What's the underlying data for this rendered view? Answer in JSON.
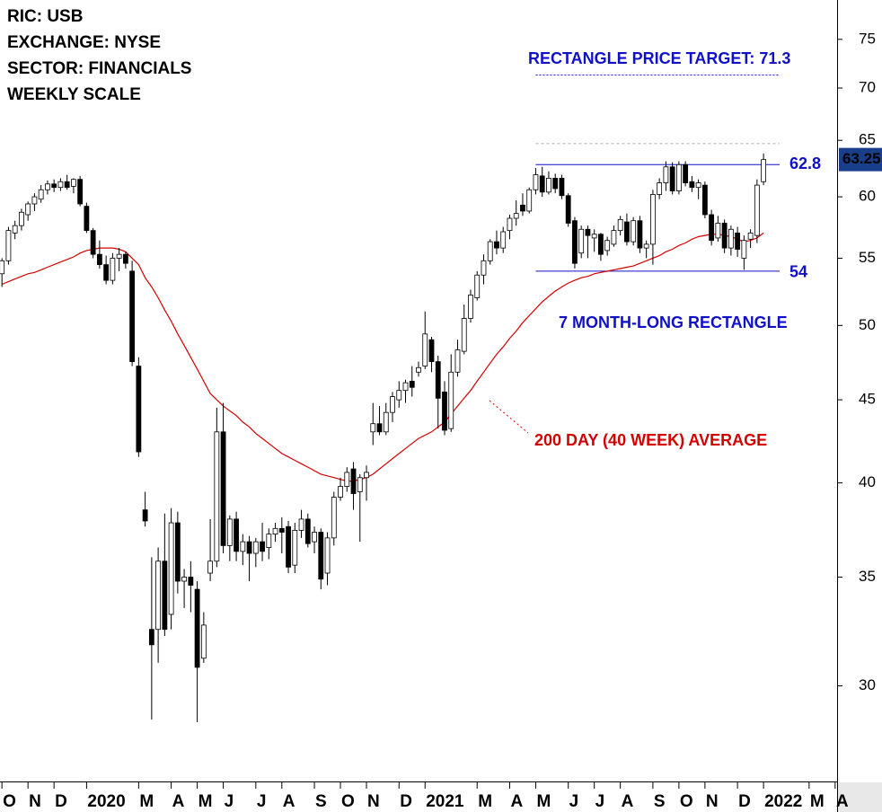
{
  "chart_data": {
    "type": "candlestick",
    "header_lines": [
      "RIC: USB",
      "EXCHANGE: NYSE",
      "SECTOR: FINANCIALS",
      "WEEKLY SCALE"
    ],
    "log_scale": true,
    "ylim": [
      26.2,
      79.3
    ],
    "yticks": [
      30,
      35,
      40,
      45,
      50,
      55,
      60,
      65,
      70,
      75
    ],
    "xlim": [
      -0.3,
      128.3
    ],
    "xticks": [
      {
        "value": 0,
        "label": "O"
      },
      {
        "value": 4,
        "label": "N"
      },
      {
        "value": 8,
        "label": "D"
      },
      {
        "value": 13,
        "label": "2020"
      },
      {
        "value": 21,
        "label": "M"
      },
      {
        "value": 26,
        "label": "A"
      },
      {
        "value": 30,
        "label": "M"
      },
      {
        "value": 34,
        "label": "J"
      },
      {
        "value": 39,
        "label": "J"
      },
      {
        "value": 43,
        "label": "A"
      },
      {
        "value": 48,
        "label": "S"
      },
      {
        "value": 52,
        "label": "O"
      },
      {
        "value": 56,
        "label": "N"
      },
      {
        "value": 61,
        "label": "D"
      },
      {
        "value": 65,
        "label": "2021"
      },
      {
        "value": 73,
        "label": "M"
      },
      {
        "value": 78,
        "label": "A"
      },
      {
        "value": 82,
        "label": "M"
      },
      {
        "value": 87,
        "label": "J"
      },
      {
        "value": 91,
        "label": "J"
      },
      {
        "value": 95,
        "label": "A"
      },
      {
        "value": 100,
        "label": "S"
      },
      {
        "value": 104,
        "label": "O"
      },
      {
        "value": 108,
        "label": "N"
      },
      {
        "value": 113,
        "label": "D"
      },
      {
        "value": 117,
        "label": "2022"
      },
      {
        "value": 124,
        "label": "M"
      },
      {
        "value": 128,
        "label": "A"
      }
    ],
    "ohlc": [
      [
        53.8,
        55,
        52.8,
        54.8
      ],
      [
        54.8,
        57.5,
        54.5,
        57.2
      ],
      [
        57,
        58,
        56.5,
        57.6
      ],
      [
        57.6,
        59,
        57.2,
        58.7
      ],
      [
        58.5,
        59.6,
        58,
        59.4
      ],
      [
        59.4,
        60.3,
        58.8,
        60
      ],
      [
        59.8,
        61,
        59.5,
        60.6
      ],
      [
        60.6,
        61.4,
        60.2,
        61.1
      ],
      [
        61.1,
        61.5,
        60.4,
        60.8
      ],
      [
        60.8,
        61.6,
        60.5,
        61.3
      ],
      [
        61.3,
        61.9,
        60.6,
        60.8
      ],
      [
        60.9,
        61.6,
        60.3,
        61.5
      ],
      [
        61.5,
        61.8,
        59.2,
        59.4
      ],
      [
        59.2,
        59.5,
        57,
        57.2
      ],
      [
        57.2,
        57.4,
        55,
        55.3
      ],
      [
        55.3,
        56.4,
        54.2,
        54.5
      ],
      [
        54.5,
        55.2,
        53,
        53.3
      ],
      [
        53.3,
        55.4,
        53,
        55
      ],
      [
        55,
        55.8,
        54,
        55.3
      ],
      [
        55.3,
        55.5,
        54.2,
        54.6
      ],
      [
        54,
        54.8,
        47.2,
        47.5
      ],
      [
        47.2,
        47.8,
        41.5,
        41.8
      ],
      [
        38.5,
        39.5,
        37.6,
        37.9
      ],
      [
        32.5,
        36,
        28.6,
        31.8
      ],
      [
        32.5,
        36.5,
        31,
        35.8
      ],
      [
        35.8,
        38.3,
        32.2,
        32.5
      ],
      [
        33.2,
        38.6,
        32.5,
        37.8
      ],
      [
        37.8,
        38.4,
        34.2,
        34.8
      ],
      [
        34.8,
        35.4,
        33.5,
        35
      ],
      [
        35,
        35.8,
        33.3,
        34.6
      ],
      [
        34.4,
        34.8,
        28.5,
        30.8
      ],
      [
        31.2,
        33.3,
        31,
        32.7
      ],
      [
        35.2,
        38,
        34.8,
        35.8
      ],
      [
        35.8,
        44.5,
        35.5,
        43
      ],
      [
        43,
        44.8,
        36.2,
        36.6
      ],
      [
        36.6,
        38.2,
        35.8,
        38
      ],
      [
        38,
        38.4,
        35.8,
        36.3
      ],
      [
        36.3,
        37.2,
        35.6,
        36.8
      ],
      [
        36.8,
        37.1,
        34.8,
        36.2
      ],
      [
        36.2,
        37,
        35.5,
        36.8
      ],
      [
        36.8,
        37.8,
        35.8,
        36.3
      ],
      [
        36.5,
        37.5,
        35.9,
        37.2
      ],
      [
        37.2,
        37.8,
        36.8,
        37.5
      ],
      [
        37.5,
        38.1,
        36.2,
        37.3
      ],
      [
        37.6,
        37.9,
        35.2,
        35.5
      ],
      [
        35.6,
        37.8,
        35.2,
        37.4
      ],
      [
        37.4,
        38.5,
        37,
        38
      ],
      [
        38,
        38.3,
        36.5,
        36.7
      ],
      [
        36.8,
        37.6,
        36.2,
        37.3
      ],
      [
        37.3,
        37.5,
        34.4,
        34.9
      ],
      [
        35.2,
        37.3,
        34.6,
        37
      ],
      [
        37,
        39.5,
        36.6,
        39.2
      ],
      [
        39.2,
        40.3,
        39,
        39.8
      ],
      [
        39.8,
        40.9,
        39.5,
        40.6
      ],
      [
        40.8,
        41.2,
        38.5,
        39.4
      ],
      [
        39.5,
        40.5,
        36.8,
        40.3
      ],
      [
        40.3,
        41,
        39,
        40.6
      ],
      [
        43,
        44.8,
        42.2,
        43.5
      ],
      [
        43.5,
        44.6,
        42.8,
        43
      ],
      [
        43,
        44.8,
        42.8,
        44.2
      ],
      [
        44.2,
        45.5,
        43.6,
        45.2
      ],
      [
        45,
        46.2,
        44.5,
        45.6
      ],
      [
        45.6,
        46.3,
        44.8,
        46.1
      ],
      [
        46.2,
        47.2,
        45.2,
        45.8
      ],
      [
        46.8,
        47.5,
        46.5,
        47.1
      ],
      [
        47.2,
        51,
        47,
        49.4
      ],
      [
        49,
        49.2,
        46.8,
        47.5
      ],
      [
        47.5,
        47.9,
        43.2,
        45.1
      ],
      [
        45.5,
        46.2,
        42.8,
        43.1
      ],
      [
        43.2,
        48,
        43,
        46.8
      ],
      [
        46.8,
        49,
        46.5,
        48.3
      ],
      [
        48.2,
        51.5,
        48,
        50.5
      ],
      [
        50.5,
        52.6,
        50.2,
        52.2
      ],
      [
        52,
        54,
        51.8,
        53.7
      ],
      [
        53.7,
        55.3,
        53,
        54.8
      ],
      [
        54.8,
        56.5,
        54.5,
        56.3
      ],
      [
        56.3,
        57.2,
        55.3,
        55.8
      ],
      [
        55.8,
        57.5,
        55.4,
        57.1
      ],
      [
        57.2,
        58.5,
        56.5,
        58.2
      ],
      [
        58.2,
        59.7,
        57.6,
        58.6
      ],
      [
        59.3,
        60.3,
        58.4,
        58.8
      ],
      [
        58.8,
        60.8,
        58.6,
        60.6
      ],
      [
        60.6,
        62.5,
        60.2,
        61.9
      ],
      [
        61.8,
        62.6,
        60,
        60.4
      ],
      [
        60.4,
        62.2,
        60.2,
        61.6
      ],
      [
        61.6,
        62,
        60.3,
        60.7
      ],
      [
        61.6,
        61.9,
        59.8,
        60.1
      ],
      [
        60.1,
        60.3,
        57.5,
        57.8
      ],
      [
        58,
        58.3,
        54.2,
        54.6
      ],
      [
        55.4,
        57.6,
        55,
        57.3
      ],
      [
        57.3,
        57.6,
        55,
        56.8
      ],
      [
        56.6,
        57.3,
        55.5,
        56.9
      ],
      [
        56.9,
        57,
        54.8,
        55.3
      ],
      [
        55.6,
        56.7,
        55.2,
        56.4
      ],
      [
        56.1,
        57.6,
        55.9,
        57.2
      ],
      [
        57.2,
        58.4,
        56.8,
        58.1
      ],
      [
        57.9,
        58.6,
        56,
        56.3
      ],
      [
        56.3,
        58.3,
        56,
        58
      ],
      [
        58,
        58.4,
        55.4,
        55.8
      ],
      [
        55.8,
        56.4,
        55,
        56.1
      ],
      [
        56.1,
        60.6,
        54.5,
        60.2
      ],
      [
        60.2,
        61.6,
        59.8,
        61.2
      ],
      [
        61.2,
        63.1,
        60.5,
        62.6
      ],
      [
        62.6,
        63,
        60.2,
        60.5
      ],
      [
        60.5,
        63.1,
        60.2,
        62.8
      ],
      [
        62.8,
        63.1,
        60.9,
        61.2
      ],
      [
        61.3,
        61.8,
        60.4,
        60.8
      ],
      [
        60.8,
        61.5,
        59.8,
        61.2
      ],
      [
        61,
        61.3,
        58.2,
        58.5
      ],
      [
        58.5,
        58.9,
        56,
        56.4
      ],
      [
        56.6,
        58.4,
        56.3,
        57.8
      ],
      [
        57.8,
        58.1,
        55.4,
        55.8
      ],
      [
        55.8,
        57.6,
        55.2,
        57.3
      ],
      [
        57,
        57.5,
        55.1,
        55.7
      ],
      [
        55,
        56.8,
        54.1,
        56.4
      ],
      [
        56.5,
        57.3,
        55.8,
        57
      ],
      [
        56.8,
        61.5,
        56.2,
        61
      ],
      [
        61.3,
        63.8,
        61,
        63.25
      ]
    ],
    "up_color": "#ffffff",
    "down_color": "#000000",
    "moving_average": {
      "color": "#d40000",
      "values": [
        53.0,
        53.2,
        53.4,
        53.6,
        53.8,
        53.9,
        54.1,
        54.3,
        54.5,
        54.7,
        54.9,
        55.1,
        55.4,
        55.6,
        55.7,
        55.8,
        55.8,
        55.8,
        55.7,
        55.5,
        55.0,
        54.5,
        53.5,
        52.8,
        52.0,
        51.1,
        50.3,
        49.4,
        48.6,
        47.8,
        47.0,
        46.2,
        45.4,
        45.0,
        44.6,
        44.3,
        44.0,
        43.6,
        43.3,
        42.9,
        42.6,
        42.3,
        42.0,
        41.7,
        41.5,
        41.3,
        41.1,
        40.9,
        40.7,
        40.5,
        40.4,
        40.3,
        40.2,
        40.1,
        40.1,
        40.2,
        40.3,
        40.5,
        40.8,
        41.1,
        41.4,
        41.7,
        42.0,
        42.3,
        42.6,
        42.8,
        43.0,
        43.3,
        43.6,
        44.1,
        44.6,
        45.1,
        45.6,
        46.2,
        46.8,
        47.4,
        48.0,
        48.5,
        49.1,
        49.6,
        50.2,
        50.7,
        51.2,
        51.7,
        52.1,
        52.5,
        52.8,
        53.1,
        53.3,
        53.5,
        53.6,
        53.8,
        53.9,
        54.0,
        54.1,
        54.2,
        54.3,
        54.4,
        54.6,
        54.8,
        55.0,
        55.2,
        55.5,
        55.7,
        56.0,
        56.2,
        56.5,
        56.7,
        56.8,
        56.9,
        56.9,
        56.8,
        56.7,
        56.5,
        56.3,
        56.4,
        56.6,
        57.0
      ]
    },
    "ma_label": "200 DAY (40 WEEK) AVERAGE",
    "rectangle_top": 62.8,
    "rectangle_bottom": 54,
    "rectangle_label": "7 MONTH-LONG RECTANGLE",
    "upper_dashed_level": 64.7,
    "price_target": 71.3,
    "price_target_label": "RECTANGLE PRICE TARGET: 71.3",
    "last_price": 63.25,
    "annotation_color": "#1010c8"
  }
}
